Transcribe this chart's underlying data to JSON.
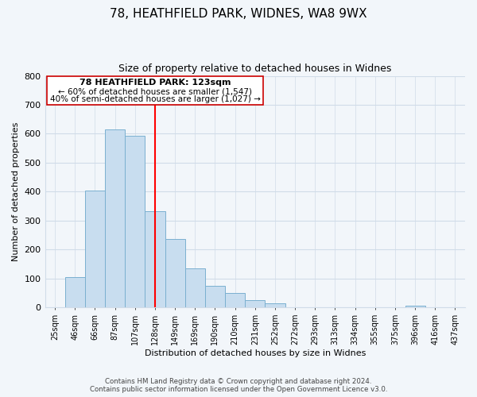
{
  "title_line1": "78, HEATHFIELD PARK, WIDNES, WA8 9WX",
  "title_line2": "Size of property relative to detached houses in Widnes",
  "xlabel": "Distribution of detached houses by size in Widnes",
  "ylabel": "Number of detached properties",
  "bin_labels": [
    "25sqm",
    "46sqm",
    "66sqm",
    "87sqm",
    "107sqm",
    "128sqm",
    "149sqm",
    "169sqm",
    "190sqm",
    "210sqm",
    "231sqm",
    "252sqm",
    "272sqm",
    "293sqm",
    "313sqm",
    "334sqm",
    "355sqm",
    "375sqm",
    "396sqm",
    "416sqm",
    "437sqm"
  ],
  "bin_values": [
    0,
    105,
    403,
    614,
    592,
    333,
    236,
    136,
    76,
    49,
    25,
    15,
    0,
    0,
    0,
    0,
    0,
    0,
    7,
    0,
    0
  ],
  "bar_color": "#c8ddef",
  "bar_edge_color": "#7ab0d0",
  "property_line_x": 5.0,
  "annotation_text_line1": "78 HEATHFIELD PARK: 123sqm",
  "annotation_text_line2": "← 60% of detached houses are smaller (1,547)",
  "annotation_text_line3": "40% of semi-detached houses are larger (1,027) →",
  "ylim": [
    0,
    800
  ],
  "yticks": [
    0,
    100,
    200,
    300,
    400,
    500,
    600,
    700,
    800
  ],
  "footer_line1": "Contains HM Land Registry data © Crown copyright and database right 2024.",
  "footer_line2": "Contains public sector information licensed under the Open Government Licence v3.0.",
  "background_color": "#f2f6fa",
  "grid_color": "#d0dce8"
}
